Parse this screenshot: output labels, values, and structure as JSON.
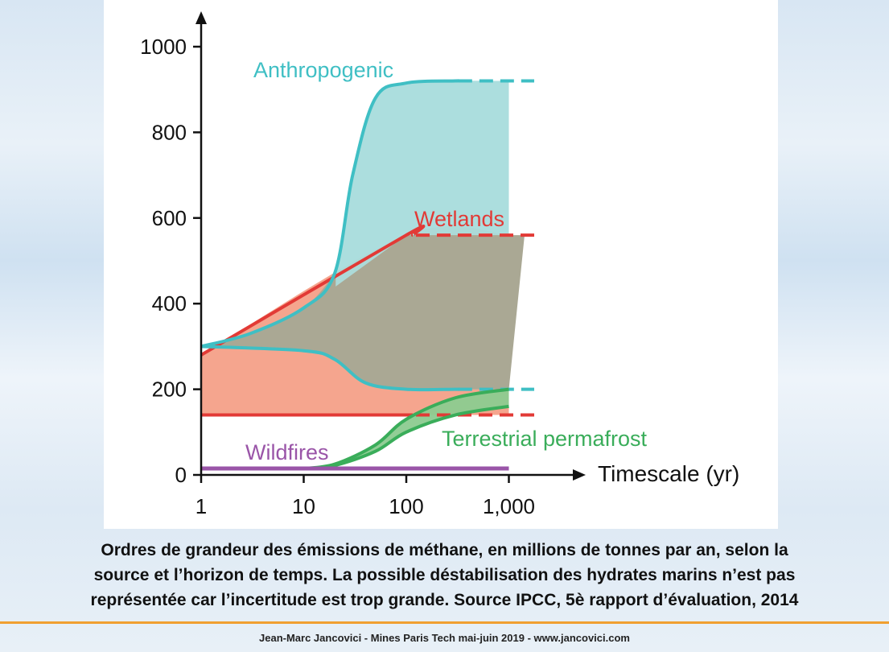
{
  "chart_data": {
    "type": "area",
    "xlabel": "Timescale (yr)",
    "ylabel": "",
    "x_scale": "log",
    "xlim": [
      1,
      1000
    ],
    "ylim": [
      0,
      1000
    ],
    "x_ticks": [
      1,
      10,
      100,
      1000
    ],
    "x_tick_labels": [
      "1",
      "10",
      "100",
      "1,000"
    ],
    "y_ticks": [
      0,
      200,
      400,
      600,
      800,
      1000
    ],
    "y_tick_labels": [
      "0",
      "200",
      "400",
      "600",
      "800",
      "1000"
    ],
    "grid": false,
    "legend": "none",
    "series": [
      {
        "name": "Anthropogenic",
        "color": "#3fbfc4",
        "fill": "#a8dcdc",
        "upper": {
          "x": [
            1,
            3,
            10,
            20,
            30,
            50,
            100,
            300,
            1000
          ],
          "y": [
            300,
            330,
            390,
            470,
            700,
            880,
            915,
            920,
            920
          ]
        },
        "lower": {
          "x": [
            1,
            10,
            20,
            40,
            100,
            300,
            1000
          ],
          "y": [
            300,
            290,
            270,
            215,
            200,
            200,
            200
          ]
        }
      },
      {
        "name": "Wetlands",
        "color": "#e23a36",
        "fill": "#f4a088",
        "upper": {
          "x": [
            1,
            100,
            1000
          ],
          "y": [
            280,
            560,
            560
          ]
        },
        "lower": {
          "x": [
            1,
            1000
          ],
          "y": [
            140,
            140
          ]
        }
      },
      {
        "name": "Terrestrial permafrost",
        "color": "#3aad5a",
        "fill": "#8ccb90",
        "upper": {
          "x": [
            10,
            20,
            50,
            100,
            300,
            1000
          ],
          "y": [
            15,
            25,
            70,
            130,
            180,
            200
          ]
        },
        "lower": {
          "x": [
            10,
            20,
            50,
            100,
            300,
            1000
          ],
          "y": [
            15,
            22,
            55,
            100,
            140,
            160
          ]
        }
      },
      {
        "name": "Wildfires",
        "color": "#9a55a8",
        "y": 15
      }
    ]
  },
  "caption": {
    "line1": "Ordres de grandeur des émissions de méthane, en millions de tonnes par an, selon la",
    "line2": "source et l’horizon de temps. La possible déstabilisation des hydrates marins n’est pas",
    "line3": "représentée car l’incertitude est trop grande. Source IPCC, 5è rapport d’évaluation, 2014"
  },
  "footer": "Jean-Marc Jancovici - Mines Paris Tech mai-juin 2019 - www.jancovici.com"
}
